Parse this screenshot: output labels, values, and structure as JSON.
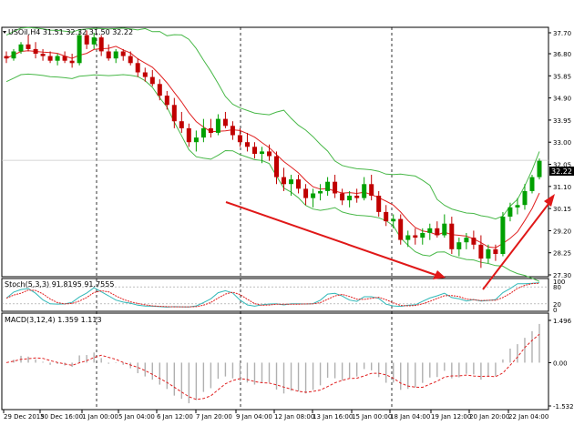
{
  "symbol_header": "USOil,H4  31.51 32.32 31.50 32.22",
  "stoch_header": "Stoch(5,3,3) 91.8195 91.7555",
  "macd_header": "MACD(3,12,4) 1.359 1.113",
  "colors": {
    "bull_candle": "#00a000",
    "bear_candle": "#c00000",
    "bollinger": "#48b848",
    "ma": "#e02020",
    "stoch_main": "#30b8b8",
    "stoch_signal": "#e02020",
    "macd_hist": "#b0b0b0",
    "macd_signal": "#e02020",
    "arrow": "#e01818"
  },
  "chart_data": [
    {
      "type": "candlestick",
      "panel": "price",
      "y_ticks": [
        "37.70",
        "36.80",
        "35.85",
        "34.90",
        "33.95",
        "33.00",
        "32.05",
        "31.10",
        "30.15",
        "29.20",
        "28.25",
        "27.30"
      ],
      "ylim": [
        27.3,
        37.7
      ],
      "current_price_label": "32.22",
      "x_ticks": [
        "29 Dec 2015",
        "30 Dec 16:00",
        "1 Jan 00:00",
        "5 Jan 04:00",
        "6 Jan 12:00",
        "7 Jan 20:00",
        "9 Jan 04:00",
        "12 Jan 08:00",
        "13 Jan 16:00",
        "15 Jan 00:00",
        "18 Jan 04:00",
        "19 Jan 12:00",
        "20 Jan 20:00",
        "22 Jan 04:00"
      ],
      "ohlc": [
        [
          36.7,
          36.9,
          36.4,
          36.6
        ],
        [
          36.6,
          37.0,
          36.5,
          36.9
        ],
        [
          36.9,
          37.3,
          36.8,
          37.2
        ],
        [
          37.2,
          37.6,
          36.9,
          37.0
        ],
        [
          37.0,
          37.3,
          36.6,
          36.8
        ],
        [
          36.8,
          37.0,
          36.5,
          36.7
        ],
        [
          36.7,
          36.9,
          36.4,
          36.5
        ],
        [
          36.5,
          36.8,
          36.3,
          36.7
        ],
        [
          36.7,
          36.9,
          36.4,
          36.5
        ],
        [
          36.5,
          36.8,
          36.2,
          36.4
        ],
        [
          36.4,
          37.8,
          36.3,
          37.6
        ],
        [
          37.6,
          37.8,
          37.0,
          37.2
        ],
        [
          37.2,
          37.7,
          37.0,
          37.5
        ],
        [
          37.5,
          37.6,
          36.7,
          36.9
        ],
        [
          36.9,
          37.2,
          36.5,
          36.6
        ],
        [
          36.6,
          37.0,
          36.4,
          36.9
        ],
        [
          36.9,
          37.0,
          36.5,
          36.7
        ],
        [
          36.7,
          36.9,
          36.3,
          36.4
        ],
        [
          36.4,
          36.6,
          35.8,
          36.0
        ],
        [
          36.0,
          36.2,
          35.6,
          35.8
        ],
        [
          35.8,
          36.1,
          35.4,
          35.5
        ],
        [
          35.5,
          35.7,
          34.8,
          35.0
        ],
        [
          35.0,
          35.2,
          34.4,
          34.6
        ],
        [
          34.6,
          34.9,
          33.6,
          33.9
        ],
        [
          33.9,
          34.3,
          33.4,
          33.6
        ],
        [
          33.6,
          33.8,
          32.8,
          33.0
        ],
        [
          33.0,
          33.5,
          32.6,
          33.2
        ],
        [
          33.2,
          34.0,
          33.0,
          33.6
        ],
        [
          33.6,
          34.0,
          33.2,
          33.4
        ],
        [
          33.4,
          34.2,
          33.3,
          34.0
        ],
        [
          34.0,
          34.3,
          33.6,
          33.7
        ],
        [
          33.7,
          33.9,
          33.1,
          33.3
        ],
        [
          33.3,
          33.6,
          32.8,
          33.0
        ],
        [
          33.0,
          33.4,
          32.6,
          32.8
        ],
        [
          32.8,
          33.0,
          32.3,
          32.5
        ],
        [
          32.5,
          32.8,
          32.1,
          32.6
        ],
        [
          32.6,
          32.9,
          32.2,
          32.4
        ],
        [
          32.4,
          32.6,
          31.2,
          31.5
        ],
        [
          31.5,
          31.9,
          30.9,
          31.2
        ],
        [
          31.2,
          31.6,
          30.7,
          31.4
        ],
        [
          31.4,
          31.6,
          30.8,
          31.0
        ],
        [
          31.0,
          31.2,
          30.3,
          30.6
        ],
        [
          30.6,
          31.0,
          30.2,
          30.8
        ],
        [
          30.8,
          31.2,
          30.5,
          30.9
        ],
        [
          30.9,
          31.5,
          30.7,
          31.3
        ],
        [
          31.3,
          31.6,
          30.6,
          30.8
        ],
        [
          30.8,
          31.0,
          30.3,
          30.5
        ],
        [
          30.5,
          30.9,
          30.2,
          30.7
        ],
        [
          30.7,
          31.0,
          30.4,
          30.6
        ],
        [
          30.6,
          31.5,
          30.5,
          31.2
        ],
        [
          31.2,
          31.6,
          30.5,
          30.7
        ],
        [
          30.7,
          30.9,
          29.8,
          30.0
        ],
        [
          30.0,
          30.3,
          29.4,
          29.6
        ],
        [
          29.6,
          29.9,
          29.3,
          29.7
        ],
        [
          29.7,
          29.9,
          28.6,
          28.8
        ],
        [
          28.8,
          29.2,
          28.5,
          29.0
        ],
        [
          29.0,
          29.3,
          28.6,
          28.9
        ],
        [
          28.9,
          29.3,
          28.6,
          29.1
        ],
        [
          29.1,
          29.5,
          28.8,
          29.3
        ],
        [
          29.3,
          29.6,
          28.9,
          29.0
        ],
        [
          29.0,
          29.9,
          28.9,
          29.5
        ],
        [
          29.5,
          29.8,
          28.2,
          28.4
        ],
        [
          28.4,
          28.9,
          28.1,
          28.7
        ],
        [
          28.7,
          29.1,
          28.4,
          28.9
        ],
        [
          28.9,
          29.2,
          28.4,
          28.6
        ],
        [
          28.6,
          29.0,
          27.6,
          28.0
        ],
        [
          28.0,
          28.6,
          27.8,
          28.4
        ],
        [
          28.4,
          28.6,
          27.9,
          28.2
        ],
        [
          28.2,
          30.0,
          28.1,
          29.8
        ],
        [
          29.8,
          30.4,
          29.6,
          30.2
        ],
        [
          30.2,
          30.6,
          29.9,
          30.3
        ],
        [
          30.3,
          31.2,
          30.1,
          30.9
        ],
        [
          30.9,
          31.6,
          30.8,
          31.5
        ],
        [
          31.5,
          32.3,
          31.4,
          32.2
        ]
      ]
    },
    {
      "type": "line",
      "panel": "stochastic",
      "y_ticks": [
        "100",
        "80",
        "20",
        "0"
      ],
      "ylim": [
        0,
        100
      ]
    },
    {
      "type": "histogram",
      "panel": "macd",
      "y_ticks": [
        "1.496",
        "0.00",
        "-1.532"
      ],
      "ylim": [
        -1.532,
        1.496
      ]
    }
  ]
}
